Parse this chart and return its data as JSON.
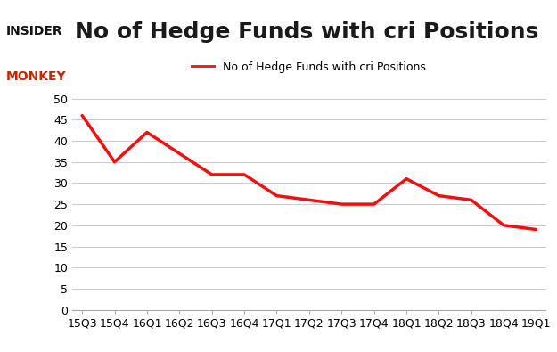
{
  "title": "No of Hedge Funds with cri Positions",
  "legend_label": "No of Hedge Funds with cri Positions",
  "x_labels": [
    "15Q3",
    "15Q4",
    "16Q1",
    "16Q2",
    "16Q3",
    "16Q4",
    "17Q1",
    "17Q2",
    "17Q3",
    "17Q4",
    "18Q1",
    "18Q2",
    "18Q3",
    "18Q4",
    "19Q1"
  ],
  "y_values": [
    46,
    35,
    42,
    37,
    32,
    32,
    27,
    26,
    25,
    25,
    31,
    27,
    26,
    20,
    19
  ],
  "line_color": "#ee1111",
  "line_width": 2.5,
  "ylim": [
    0,
    50
  ],
  "yticks": [
    0,
    5,
    10,
    15,
    20,
    25,
    30,
    35,
    40,
    45,
    50
  ],
  "title_fontsize": 18,
  "legend_fontsize": 9,
  "tick_fontsize": 9,
  "grid_color": "#cccccc",
  "background_color": "#ffffff",
  "plot_bg_color": "#ffffff",
  "logo_insider_color": "#111111",
  "logo_monkey_color": "#cc2200"
}
